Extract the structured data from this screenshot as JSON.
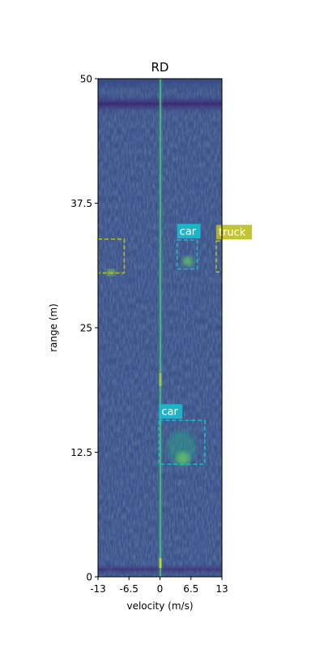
{
  "chart_data": {
    "type": "heatmap",
    "title": "RD",
    "xlabel": "velocity (m/s)",
    "ylabel": "range (m)",
    "xlim": [
      -13,
      13
    ],
    "ylim": [
      0,
      50
    ],
    "xticks": [
      {
        "value": -13,
        "label": "-13"
      },
      {
        "value": -6.5,
        "label": "-6.5"
      },
      {
        "value": 0,
        "label": "0"
      },
      {
        "value": 6.5,
        "label": "6.5"
      },
      {
        "value": 13,
        "label": "13"
      }
    ],
    "yticks": [
      {
        "value": 0,
        "label": "0"
      },
      {
        "value": 12.5,
        "label": "12.5"
      },
      {
        "value": 25,
        "label": "25"
      },
      {
        "value": 37.5,
        "label": "37.5"
      },
      {
        "value": 50,
        "label": "50"
      }
    ],
    "colormap": "viridis",
    "background_color": "#3b528b",
    "detections": [
      {
        "label": "car",
        "color": "#17becf",
        "velocity": [
          -0.2,
          9.4
        ],
        "range": [
          11.3,
          15.7
        ]
      },
      {
        "label": "car",
        "color": "#17becf",
        "velocity": [
          3.6,
          7.8
        ],
        "range": [
          30.9,
          33.8
        ]
      },
      {
        "label": "truck",
        "color": "#bcbd22",
        "velocity": [
          11.8,
          13
        ],
        "range": [
          30.6,
          33.7
        ]
      },
      {
        "label": "",
        "color": "#bcbd22",
        "velocity": [
          -13,
          -7.5
        ],
        "range": [
          30.5,
          33.9
        ]
      }
    ]
  }
}
